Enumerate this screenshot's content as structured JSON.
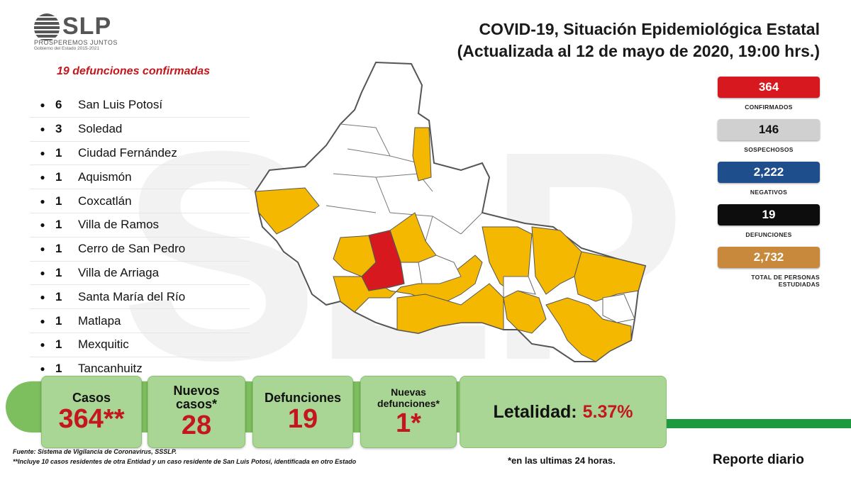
{
  "header": {
    "logo_text": "SLP",
    "logo_tagline": "PROSPEREMOS JUNTOS",
    "logo_subtagline": "Gobierno del Estado 2015-2021",
    "title_line1": "COVID-19, Situación Epidemiológica Estatal",
    "title_line2": "(Actualizada al 12 de mayo de 2020, 19:00 hrs.)"
  },
  "deaths_panel": {
    "heading": "19 defunciones confirmadas",
    "items": [
      {
        "count": "6",
        "name": "San Luis Potosí"
      },
      {
        "count": "3",
        "name": "Soledad"
      },
      {
        "count": "1",
        "name": "Ciudad Fernández"
      },
      {
        "count": "1",
        "name": "Aquismón"
      },
      {
        "count": "1",
        "name": "Coxcatlán"
      },
      {
        "count": "1",
        "name": "Villa de Ramos"
      },
      {
        "count": "1",
        "name": "Cerro de San Pedro"
      },
      {
        "count": "1",
        "name": "Villa de Arriaga"
      },
      {
        "count": "1",
        "name": "Santa María del Río"
      },
      {
        "count": "1",
        "name": "Matlapa"
      },
      {
        "count": "1",
        "name": "Mexquitic"
      },
      {
        "count": "1",
        "name": "Tancanhuitz"
      }
    ]
  },
  "stats": [
    {
      "value": "364",
      "label": "CONFIRMADOS",
      "bg": "#d7191f",
      "fg": "#ffffff"
    },
    {
      "value": "146",
      "label": "SOSPECHOSOS",
      "bg": "#d0d0d0",
      "fg": "#111111"
    },
    {
      "value": "2,222",
      "label": "NEGATIVOS",
      "bg": "#1f4e8c",
      "fg": "#ffffff"
    },
    {
      "value": "19",
      "label": "DEFUNCIONES",
      "bg": "#0d0d0d",
      "fg": "#ffffff"
    },
    {
      "value": "2,732",
      "label": "TOTAL DE PERSONAS ESTUDIADAS",
      "bg": "#c8893c",
      "fg": "#ffffff"
    }
  ],
  "summary": {
    "casos_label": "Casos",
    "casos_value": "364**",
    "nuevos_label": "Nuevos casos*",
    "nuevos_value": "28",
    "defunciones_label": "Defunciones",
    "defunciones_value": "19",
    "nuevas_def_label": "Nuevas defunciones*",
    "nuevas_def_value": "1*",
    "letalidad_label": "Letalidad:",
    "letalidad_value": "5.37%"
  },
  "footer": {
    "source": "Fuente: Sistema de Vigilancia de Coronavirus, SSSLP.",
    "note": "**Incluye 10 casos residentes de otra Entidad y un caso residente de San Luis Potosí, identificada en otro Estado",
    "asterisk_note": "*en las ultimas 24 horas.",
    "report": "Reporte diario"
  },
  "colors": {
    "map_affected": "#f5b800",
    "map_most": "#d7191f",
    "map_none": "#ffffff",
    "accent_red": "#c4161c",
    "band_green": "#7dbe5f"
  }
}
